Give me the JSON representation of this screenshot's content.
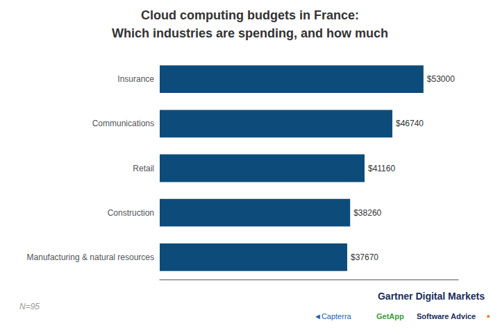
{
  "chart_data": {
    "type": "bar",
    "orientation": "horizontal",
    "title": "Cloud computing budgets in France:",
    "subtitle": "Which industries are spending, and how much",
    "categories": [
      "Manufacturing & natural resources",
      "Construction",
      "Retail",
      "Communications",
      "Insurance"
    ],
    "values": [
      37670,
      38260,
      41160,
      46740,
      53000
    ],
    "value_labels": [
      "$37670",
      "$38260",
      "$41160",
      "$46740",
      "$53000"
    ],
    "data_labels": true,
    "color": "#0d4c7a",
    "xlim": [
      0,
      60000
    ],
    "grid": false,
    "tick_labels": "y",
    "annotations": [
      "N=95",
      "Gartner Digital Markets",
      "◄Capterra",
      "GetApp",
      "Software Advice",
      "●"
    ]
  }
}
